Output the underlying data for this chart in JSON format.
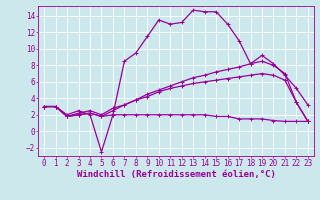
{
  "background_color": "#cce8ec",
  "line_color": "#990099",
  "grid_color": "#ffffff",
  "xlabel": "Windchill (Refroidissement éolien,°C)",
  "xlim": [
    -0.5,
    23.5
  ],
  "ylim": [
    -3.0,
    15.2
  ],
  "xticks": [
    0,
    1,
    2,
    3,
    4,
    5,
    6,
    7,
    8,
    9,
    10,
    11,
    12,
    13,
    14,
    15,
    16,
    17,
    18,
    19,
    20,
    21,
    22,
    23
  ],
  "yticks": [
    -2,
    0,
    2,
    4,
    6,
    8,
    10,
    12,
    14
  ],
  "lines": [
    {
      "x": [
        0,
        1,
        2,
        3,
        4,
        5,
        6,
        7,
        8,
        9,
        10,
        11,
        12,
        13,
        14,
        15,
        16,
        17,
        18,
        19,
        20,
        21,
        22,
        23
      ],
      "y": [
        3,
        3,
        2,
        2.5,
        2,
        -2.5,
        2,
        8.5,
        9.5,
        11.5,
        13.5,
        13.0,
        13.2,
        14.7,
        14.5,
        14.5,
        13.0,
        11.0,
        8.2,
        9.2,
        8.2,
        6.8,
        5.2,
        3.2
      ]
    },
    {
      "x": [
        0,
        1,
        2,
        3,
        4,
        5,
        6,
        7,
        8,
        9,
        10,
        11,
        12,
        13,
        14,
        15,
        16,
        17,
        18,
        19,
        20,
        21,
        22,
        23
      ],
      "y": [
        3,
        3,
        1.8,
        2.0,
        2.2,
        1.8,
        2.5,
        3.2,
        3.8,
        4.5,
        5.0,
        5.5,
        6.0,
        6.5,
        6.8,
        7.2,
        7.5,
        7.8,
        8.2,
        8.5,
        8.0,
        7.0,
        3.5,
        1.2
      ]
    },
    {
      "x": [
        0,
        1,
        2,
        3,
        4,
        5,
        6,
        7,
        8,
        9,
        10,
        11,
        12,
        13,
        14,
        15,
        16,
        17,
        18,
        19,
        20,
        21,
        22,
        23
      ],
      "y": [
        3,
        3,
        1.8,
        2.2,
        2.5,
        2.0,
        2.8,
        3.2,
        3.8,
        4.2,
        4.8,
        5.2,
        5.5,
        5.8,
        6.0,
        6.2,
        6.4,
        6.6,
        6.8,
        7.0,
        6.8,
        6.2,
        3.5,
        1.2
      ]
    },
    {
      "x": [
        0,
        1,
        2,
        3,
        4,
        5,
        6,
        7,
        8,
        9,
        10,
        11,
        12,
        13,
        14,
        15,
        16,
        17,
        18,
        19,
        20,
        21,
        22,
        23
      ],
      "y": [
        3,
        3,
        1.8,
        2.0,
        2.2,
        1.8,
        2.0,
        2.0,
        2.0,
        2.0,
        2.0,
        2.0,
        2.0,
        2.0,
        2.0,
        1.8,
        1.8,
        1.5,
        1.5,
        1.5,
        1.3,
        1.2,
        1.2,
        1.2
      ]
    }
  ],
  "marker": "+",
  "markersize": 3,
  "linewidth": 0.9,
  "tick_fontsize": 5.5,
  "xlabel_fontsize": 6.5
}
